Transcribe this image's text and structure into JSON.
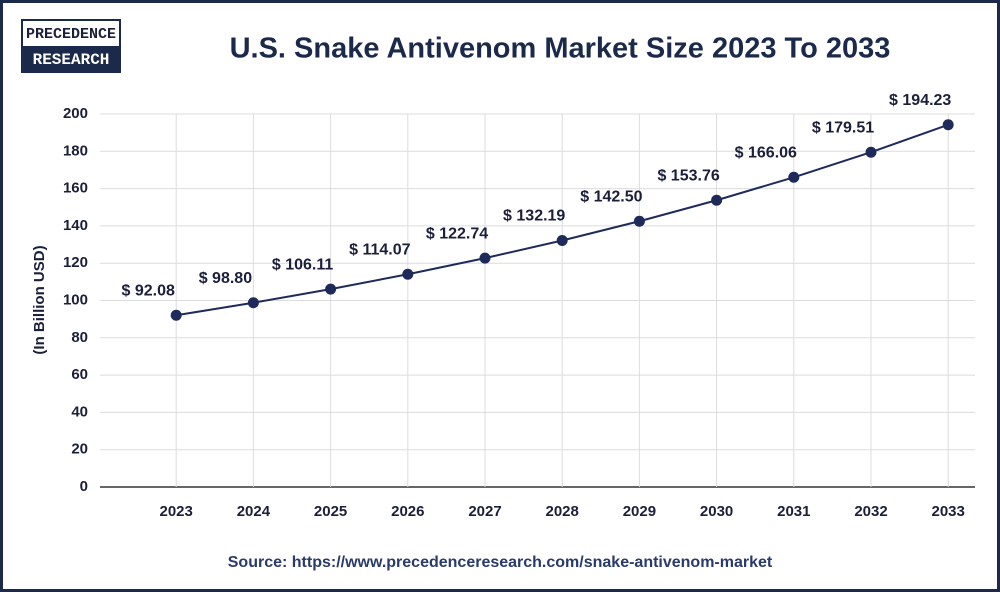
{
  "logo": {
    "top": "PRECEDENCE",
    "bottom": "RESEARCH"
  },
  "source": "Source: https://www.precedenceresearch.com/snake-antivenom-market",
  "chart_data": {
    "type": "line",
    "title": "U.S. Snake Antivenom Market Size 2023 To 2033",
    "y_label": "(In Billion USD)",
    "categories": [
      "2023",
      "2024",
      "2025",
      "2026",
      "2027",
      "2028",
      "2029",
      "2030",
      "2031",
      "2032",
      "2033"
    ],
    "values": [
      92.08,
      98.8,
      106.11,
      114.07,
      122.74,
      132.19,
      142.5,
      153.76,
      166.06,
      179.51,
      194.23
    ],
    "value_labels": [
      "$ 92.08",
      "$ 98.80",
      "$ 106.11",
      "$ 114.07",
      "$ 122.74",
      "$ 132.19",
      "$ 142.50",
      "$ 153.76",
      "$ 166.06",
      "$ 179.51",
      "$ 194.23"
    ],
    "color": "#1e2a5a",
    "ylim": [
      0,
      200
    ],
    "yticks": [
      0,
      20,
      40,
      60,
      80,
      100,
      120,
      140,
      160,
      180,
      200
    ],
    "grid": true
  }
}
